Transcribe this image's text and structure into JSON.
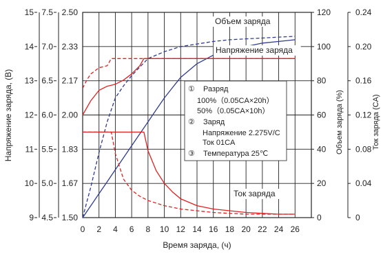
{
  "chart_data": {
    "type": "line",
    "x_label": "Время заряда, (ч)",
    "x_ticks": [
      0,
      2,
      4,
      6,
      8,
      10,
      12,
      14,
      16,
      18,
      20,
      22,
      24,
      26
    ],
    "xlim": [
      0,
      28
    ],
    "left_axes": [
      {
        "label": "Напряжение заряда, (В)",
        "ticks": [
          "15",
          "14",
          "13",
          "12",
          "11",
          "10",
          "9"
        ],
        "values": [
          15,
          14,
          13,
          12,
          11,
          10,
          9
        ]
      },
      {
        "label": "",
        "ticks": [
          "7.5",
          "7.0",
          "6.5",
          "6.0",
          "5.5",
          "5.0",
          "4.5"
        ],
        "values": [
          7.5,
          7.0,
          6.5,
          6.0,
          5.5,
          5.0,
          4.5
        ]
      },
      {
        "label": "",
        "ticks": [
          "2.50",
          "2.33",
          "2.17",
          "2.00",
          "1.83",
          "1.67",
          "1.50"
        ],
        "values": [
          2.5,
          2.33,
          2.17,
          2.0,
          1.83,
          1.67,
          1.5
        ]
      }
    ],
    "right_axes": [
      {
        "label": "Объем заряда (%)",
        "ticks": [
          "120",
          "100",
          "80",
          "60",
          "40",
          "20",
          "0"
        ],
        "ylim": [
          0,
          120
        ]
      },
      {
        "label": "Ток заряда (CA)",
        "ticks": [
          "0.24",
          "0.20",
          "0.16",
          "0.12",
          "0.08",
          "0.04",
          "0"
        ],
        "ylim": [
          0,
          0.24
        ]
      }
    ],
    "grid": true,
    "series": [
      {
        "name": "Объем заряда",
        "condition": "100% (0.05CA×20h)",
        "axis": "charge_pct",
        "color": "#2e3a8c",
        "dash": "solid",
        "x": [
          0,
          1,
          2,
          3,
          4,
          5,
          6,
          7,
          8,
          9,
          10,
          11,
          12,
          14,
          16,
          18,
          20,
          22,
          24,
          26
        ],
        "y": [
          0,
          7,
          14,
          21,
          28,
          35,
          42,
          49,
          56,
          63,
          70,
          76,
          82,
          90,
          95,
          98,
          100,
          102,
          103,
          104
        ]
      },
      {
        "name": "Объем заряда",
        "condition": "50% (0.05CA×10h)",
        "axis": "charge_pct",
        "color": "#2e3a8c",
        "dash": "dashed",
        "x": [
          0,
          1,
          2,
          3,
          4,
          5,
          6,
          7,
          8,
          10,
          12,
          14,
          16,
          18,
          20,
          22,
          24,
          26
        ],
        "y": [
          0,
          18,
          38,
          56,
          70,
          77,
          83,
          88,
          93,
          97,
          100,
          101.5,
          103,
          104,
          104.5,
          105,
          105.5,
          106
        ]
      },
      {
        "name": "Напряжение заряда",
        "condition": "100% (0.05CA×20h)",
        "axis": "cell_v",
        "color": "#e02020",
        "dash": "solid",
        "x": [
          0,
          1,
          2,
          3,
          4,
          5,
          6,
          7,
          7.5,
          26
        ],
        "y": [
          2.0,
          2.07,
          2.12,
          2.14,
          2.15,
          2.17,
          2.2,
          2.24,
          2.275,
          2.275
        ]
      },
      {
        "name": "Напряжение заряда",
        "condition": "50% (0.05CA×10h)",
        "axis": "cell_v",
        "color": "#e02020",
        "dash": "dashed",
        "x": [
          0,
          0.5,
          1,
          2,
          3,
          3.5,
          4,
          26
        ],
        "y": [
          2.13,
          2.17,
          2.2,
          2.23,
          2.24,
          2.275,
          2.275,
          2.275
        ]
      },
      {
        "name": "Ток заряда",
        "condition": "100% (0.05CA×20h)",
        "axis": "current_ca",
        "color": "#e02020",
        "dash": "solid",
        "x": [
          0,
          7.5,
          8,
          9,
          10,
          11,
          12,
          14,
          16,
          18,
          20,
          22,
          24,
          26
        ],
        "y": [
          0.1,
          0.1,
          0.078,
          0.055,
          0.04,
          0.03,
          0.022,
          0.014,
          0.01,
          0.008,
          0.006,
          0.005,
          0.004,
          0.004
        ]
      },
      {
        "name": "Ток заряда",
        "condition": "50% (0.05CA×10h)",
        "axis": "current_ca",
        "color": "#e02020",
        "dash": "dashed",
        "x": [
          0,
          3.5,
          4,
          5,
          6,
          7,
          8,
          10,
          12,
          14,
          16,
          18,
          20,
          22,
          24,
          26
        ],
        "y": [
          0.1,
          0.1,
          0.075,
          0.045,
          0.032,
          0.025,
          0.02,
          0.014,
          0.01,
          0.008,
          0.006,
          0.005,
          0.004,
          0.004,
          0.004,
          0.004
        ]
      }
    ],
    "curve_labels": [
      "Объем заряда",
      "Напряжение заряда",
      "Ток заряда"
    ],
    "legend": {
      "position": "center",
      "items": [
        {
          "mark": "①",
          "text": "Разряд"
        },
        {
          "mark": "",
          "text": "100%（0.05CA×20h）"
        },
        {
          "mark": "",
          "text": "50%（0.05CA×10h）"
        },
        {
          "mark": "②",
          "text": "Заряд"
        },
        {
          "mark": "",
          "text": "Напряжение  2.275V/C"
        },
        {
          "mark": "",
          "text": "Ток               01CA"
        },
        {
          "mark": "③",
          "text": "Температура   25℃"
        }
      ]
    }
  }
}
